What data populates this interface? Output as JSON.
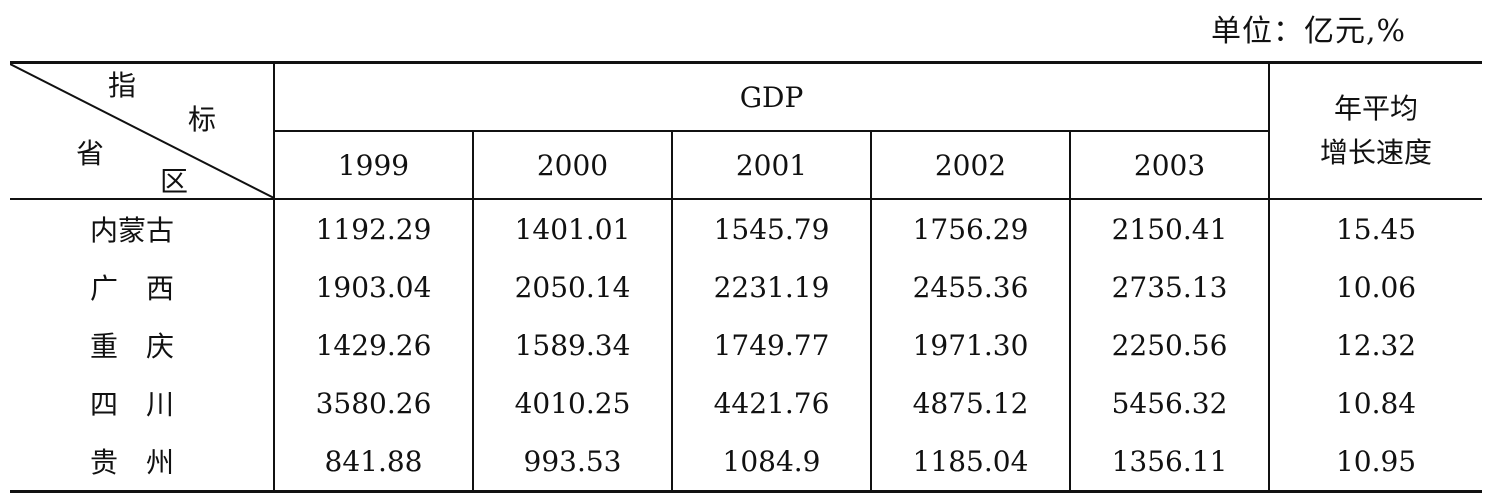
{
  "unit_label": "单位：亿元,%",
  "header": {
    "corner": {
      "top_right_1": "指",
      "top_right_2": "标",
      "bottom_left_1": "省",
      "bottom_left_2": "区"
    },
    "group_label": "GDP",
    "years": [
      "1999",
      "2000",
      "2001",
      "2002",
      "2003"
    ],
    "avg_growth_line1": "年平均",
    "avg_growth_line2": "增长速度"
  },
  "rows": [
    {
      "province": "内蒙古",
      "values": [
        "1192.29",
        "1401.01",
        "1545.79",
        "1756.29",
        "2150.41"
      ],
      "avg_growth": "15.45"
    },
    {
      "province": "广　西",
      "values": [
        "1903.04",
        "2050.14",
        "2231.19",
        "2455.36",
        "2735.13"
      ],
      "avg_growth": "10.06"
    },
    {
      "province": "重　庆",
      "values": [
        "1429.26",
        "1589.34",
        "1749.77",
        "1971.30",
        "2250.56"
      ],
      "avg_growth": "12.32"
    },
    {
      "province": "四　川",
      "values": [
        "3580.26",
        "4010.25",
        "4421.76",
        "4875.12",
        "5456.32"
      ],
      "avg_growth": "10.84"
    },
    {
      "province": "贵　州",
      "values": [
        "841.88",
        "993.53",
        "1084.9",
        "1185.04",
        "1356.11"
      ],
      "avg_growth": "10.95"
    }
  ]
}
